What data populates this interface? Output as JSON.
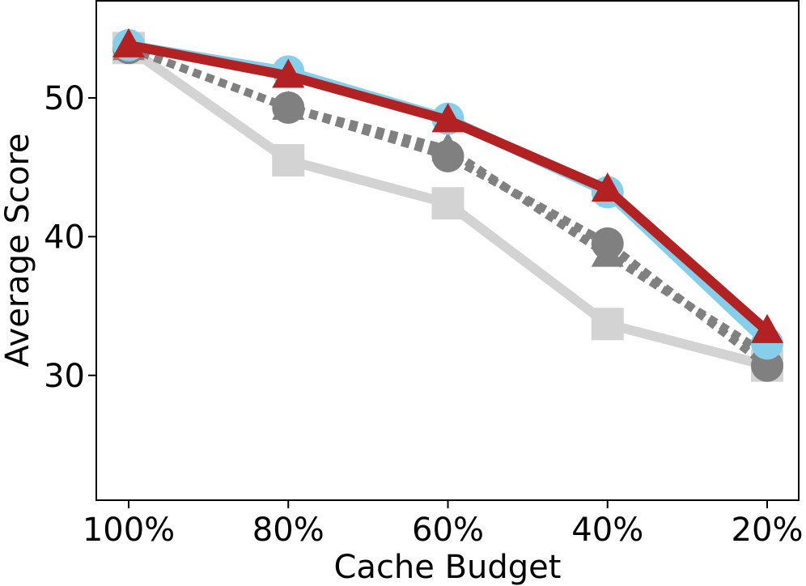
{
  "chart_data": {
    "type": "line",
    "title": "",
    "xlabel": "Cache Budget",
    "ylabel": "Average Score",
    "categories": [
      "100%",
      "80%",
      "60%",
      "40%",
      "20%"
    ],
    "ylim": [
      21,
      57
    ],
    "yticks": [
      30,
      40,
      50
    ],
    "grid": false,
    "legend": "none",
    "series": [
      {
        "color": "#d3d3d3",
        "line": "solid",
        "marker": "square",
        "values": [
          53.6,
          45.5,
          42.4,
          33.7,
          30.7
        ]
      },
      {
        "color": "#808080",
        "line": "dotted",
        "marker": "circle",
        "values": [
          53.6,
          49.3,
          45.8,
          39.5,
          30.7
        ]
      },
      {
        "color": "#808080",
        "line": "dotted",
        "marker": "triangle",
        "values": [
          53.6,
          49.3,
          46.3,
          38.7,
          31.5
        ]
      },
      {
        "color": "#87ceeb",
        "line": "solid",
        "marker": "circle",
        "values": [
          53.8,
          51.9,
          48.5,
          43.2,
          32.3
        ]
      },
      {
        "color": "#b22222",
        "line": "solid",
        "marker": "triangle",
        "values": [
          53.8,
          51.6,
          48.4,
          43.4,
          33.2
        ]
      }
    ]
  }
}
